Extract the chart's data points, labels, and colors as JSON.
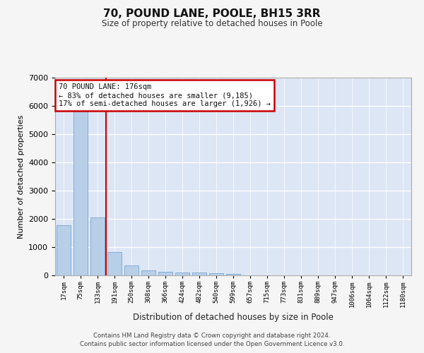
{
  "title": "70, POUND LANE, POOLE, BH15 3RR",
  "subtitle": "Size of property relative to detached houses in Poole",
  "xlabel": "Distribution of detached houses by size in Poole",
  "ylabel": "Number of detached properties",
  "bar_color": "#b8cfe8",
  "bar_edge_color": "#6699cc",
  "background_color": "#dce6f5",
  "grid_color": "#ffffff",
  "vline_color": "#cc0000",
  "vline_x_index": 2.5,
  "annotation_text": "70 POUND LANE: 176sqm\n← 83% of detached houses are smaller (9,185)\n17% of semi-detached houses are larger (1,926) →",
  "categories": [
    "17sqm",
    "75sqm",
    "133sqm",
    "191sqm",
    "250sqm",
    "308sqm",
    "366sqm",
    "424sqm",
    "482sqm",
    "540sqm",
    "599sqm",
    "657sqm",
    "715sqm",
    "773sqm",
    "831sqm",
    "889sqm",
    "947sqm",
    "1006sqm",
    "1064sqm",
    "1122sqm",
    "1180sqm"
  ],
  "values": [
    1780,
    5800,
    2060,
    820,
    340,
    185,
    120,
    105,
    95,
    70,
    50,
    0,
    0,
    0,
    0,
    0,
    0,
    0,
    0,
    0,
    0
  ],
  "ylim": [
    0,
    7000
  ],
  "yticks": [
    0,
    1000,
    2000,
    3000,
    4000,
    5000,
    6000,
    7000
  ],
  "footer_line1": "Contains HM Land Registry data © Crown copyright and database right 2024.",
  "footer_line2": "Contains public sector information licensed under the Open Government Licence v3.0.",
  "fig_width": 6.0,
  "fig_height": 5.0,
  "fig_bg_color": "#f5f5f5"
}
